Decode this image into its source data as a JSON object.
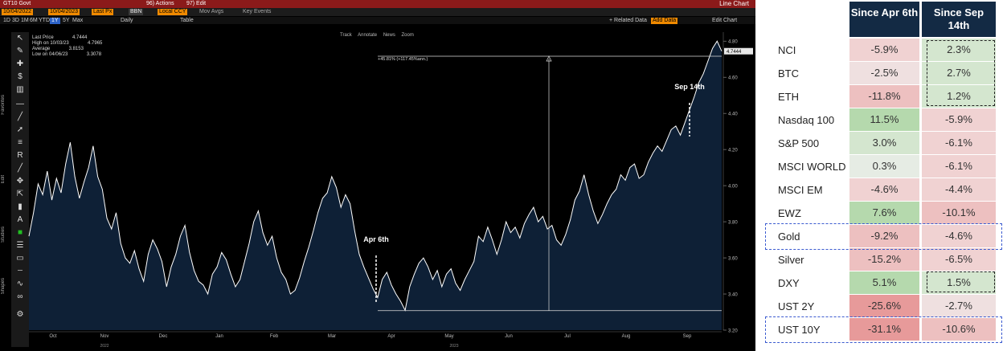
{
  "terminal": {
    "security": "GT10 Govt",
    "menu_actions": "96) Actions",
    "menu_edit": "97) Edit",
    "chart_title": "Line Chart",
    "date_start": "10/04/2022",
    "date_end": "10/04/2023",
    "field": "Last Px",
    "source": "BBN",
    "currency": "Local CCY",
    "mov_avgs": "Mov Avgs",
    "key_events": "Key Events",
    "periods": [
      "1D",
      "3D",
      "1M",
      "6M",
      "YTD",
      "1Y",
      "5Y",
      "Max"
    ],
    "selected_period": "1Y",
    "frequency": "Daily",
    "table_btn": "Table",
    "related_data": "+ Related Data",
    "add_data": "Add Data",
    "edit_chart": "Edit Chart",
    "tools": [
      "Track",
      "Annotate",
      "News",
      "Zoom"
    ],
    "legend": {
      "last_label": "Last Price",
      "last_value": "4.7444",
      "high_label": "High on 10/03/23",
      "high_value": "4.7965",
      "avg_label": "Average",
      "avg_value": "3.8153",
      "low_label": "Low on 04/06/23",
      "low_value": "3.3078"
    },
    "measure_label": "+45.81% (+117.45%ann.)",
    "sidebar_labels": [
      "Favorites",
      "Edit",
      "Studies",
      "Shapes"
    ]
  },
  "chart_data": {
    "type": "area",
    "series": [
      {
        "values": [
          3.72,
          3.85,
          4.01,
          3.95,
          4.08,
          3.92,
          4.04,
          3.96,
          4.12,
          4.24,
          4.05,
          3.93,
          4.02,
          4.1,
          4.22,
          4.05,
          3.98,
          3.82,
          3.76,
          3.85,
          3.68,
          3.6,
          3.57,
          3.64,
          3.54,
          3.47,
          3.62,
          3.7,
          3.65,
          3.58,
          3.44,
          3.55,
          3.62,
          3.72,
          3.78,
          3.63,
          3.53,
          3.47,
          3.45,
          3.4,
          3.51,
          3.55,
          3.63,
          3.59,
          3.51,
          3.44,
          3.48,
          3.58,
          3.68,
          3.8,
          3.86,
          3.74,
          3.67,
          3.72,
          3.6,
          3.52,
          3.48,
          3.4,
          3.42,
          3.49,
          3.58,
          3.66,
          3.75,
          3.85,
          3.93,
          3.96,
          4.05,
          3.99,
          3.88,
          3.95,
          3.9,
          3.75,
          3.62,
          3.55,
          3.49,
          3.43,
          3.38,
          3.48,
          3.52,
          3.45,
          3.4,
          3.36,
          3.31,
          3.44,
          3.51,
          3.57,
          3.6,
          3.55,
          3.48,
          3.53,
          3.44,
          3.51,
          3.54,
          3.46,
          3.42,
          3.48,
          3.53,
          3.58,
          3.72,
          3.69,
          3.77,
          3.7,
          3.62,
          3.7,
          3.8,
          3.74,
          3.77,
          3.71,
          3.79,
          3.84,
          3.88,
          3.8,
          3.83,
          3.76,
          3.78,
          3.7,
          3.67,
          3.73,
          3.81,
          3.92,
          3.97,
          4.06,
          3.95,
          3.86,
          3.79,
          3.84,
          3.9,
          3.95,
          3.98,
          4.06,
          4.03,
          4.1,
          4.12,
          4.04,
          4.06,
          4.13,
          4.18,
          4.22,
          4.19,
          4.25,
          4.31,
          4.33,
          4.28,
          4.35,
          4.42,
          4.49,
          4.57,
          4.62,
          4.69,
          4.76,
          4.8,
          4.7444
        ]
      }
    ],
    "xlabels": [
      "Oct",
      "Nov",
      "Dec",
      "Jan",
      "Feb",
      "Mar",
      "Apr",
      "May",
      "Jun",
      "Jul",
      "Aug",
      "Sep"
    ],
    "year_labels": [
      "2022",
      "2023"
    ],
    "yticks": [
      "3.20",
      "3.40",
      "3.60",
      "3.80",
      "4.00",
      "4.20",
      "4.40",
      "4.60",
      "4.80"
    ],
    "ylim": [
      3.2,
      4.85
    ],
    "annotations": [
      {
        "label": "Apr 6th"
      },
      {
        "label": "Sep 14th"
      }
    ],
    "last_value_tag": "4.7444",
    "colors": {
      "line": "#ffffff",
      "fill": "#0e2036",
      "background": "#000000"
    }
  },
  "table": {
    "headers": [
      "Since Apr 6th",
      "Since Sep 14th"
    ],
    "rows": [
      {
        "label": "NCI",
        "apr": "-5.9%",
        "sep": "2.3%"
      },
      {
        "label": "BTC",
        "apr": "-2.5%",
        "sep": "2.7%"
      },
      {
        "label": "ETH",
        "apr": "-11.8%",
        "sep": "1.2%"
      },
      {
        "label": "Nasdaq 100",
        "apr": "11.5%",
        "sep": "-5.9%"
      },
      {
        "label": "S&P 500",
        "apr": "3.0%",
        "sep": "-6.1%"
      },
      {
        "label": "MSCI WORLD",
        "apr": "0.3%",
        "sep": "-6.1%"
      },
      {
        "label": "MSCI EM",
        "apr": "-4.6%",
        "sep": "-4.4%"
      },
      {
        "label": "EWZ",
        "apr": "7.6%",
        "sep": "-10.1%"
      },
      {
        "label": "Gold",
        "apr": "-9.2%",
        "sep": "-4.6%"
      },
      {
        "label": "Silver",
        "apr": "-15.2%",
        "sep": "-6.5%"
      },
      {
        "label": "DXY",
        "apr": "5.1%",
        "sep": "1.5%"
      },
      {
        "label": "UST 2Y",
        "apr": "-25.6%",
        "sep": "-2.7%"
      },
      {
        "label": "UST 10Y",
        "apr": "-31.1%",
        "sep": "-10.6%"
      }
    ],
    "colors": {
      "header": "#132a44",
      "positive": "#b8dcb0",
      "negative": "#e9a0a0",
      "neutral": "#ececec"
    }
  }
}
